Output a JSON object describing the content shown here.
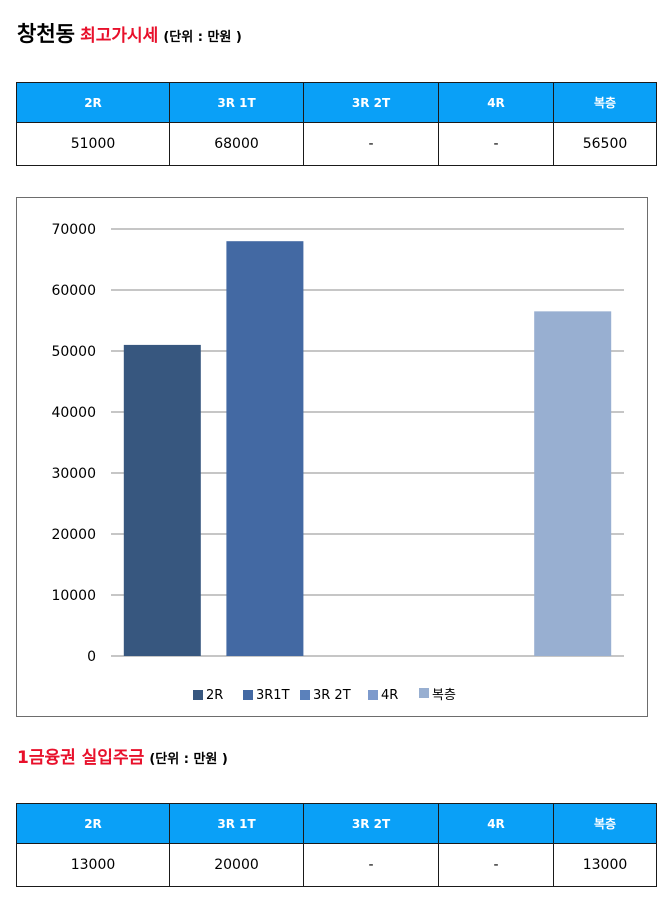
{
  "section1": {
    "title": "창천동",
    "subtitle": "최고가시세",
    "unit": "(단위 : 만원 )",
    "headers": [
      "2R",
      "3R 1T",
      "3R 2T",
      "4R",
      "복층"
    ],
    "values": [
      "51000",
      "68000",
      "-",
      "-",
      "56500"
    ]
  },
  "section2": {
    "title": "1금융권 실입주금",
    "unit": "(단위 : 만원 )",
    "headers": [
      "2R",
      "3R 1T",
      "3R 2T",
      "4R",
      "복층"
    ],
    "values": [
      "13000",
      "20000",
      "-",
      "-",
      "13000"
    ]
  },
  "chart_data": {
    "type": "bar",
    "categories": [
      "2R",
      "3R1T",
      "3R 2T",
      "4R",
      "복층"
    ],
    "values": [
      51000,
      68000,
      null,
      null,
      56500
    ],
    "colors": [
      "#37577f",
      "#4369a3",
      "#5b81bb",
      "#7d9acc",
      "#98afd1"
    ],
    "ylim": [
      0,
      70000
    ],
    "yticks": [
      0,
      10000,
      20000,
      30000,
      40000,
      50000,
      60000,
      70000
    ],
    "grid": true,
    "legend_position": "bottom",
    "legend": [
      "2R",
      "3R1T",
      "3R 2T",
      "4R",
      "복층"
    ]
  }
}
